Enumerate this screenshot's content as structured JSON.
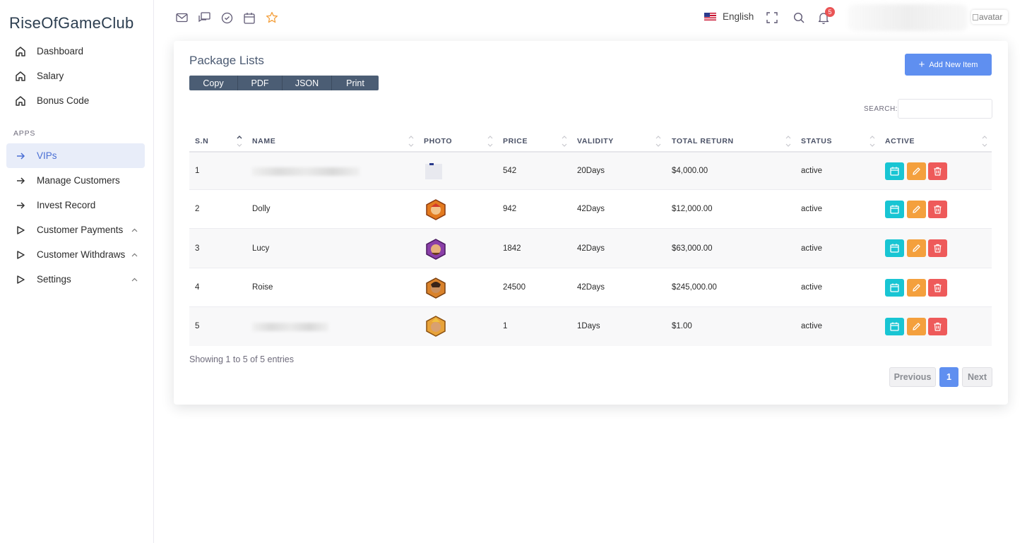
{
  "brand": "RiseOfGameClub",
  "sidebar": {
    "items": [
      {
        "label": "Dashboard",
        "icon": "home-icon"
      },
      {
        "label": "Salary",
        "icon": "home-icon"
      },
      {
        "label": "Bonus Code",
        "icon": "home-icon"
      }
    ],
    "section_label": "APPS",
    "apps": [
      {
        "label": "VIPs",
        "icon": "arrow-right-icon",
        "active": true
      },
      {
        "label": "Manage Customers",
        "icon": "arrow-right-icon"
      },
      {
        "label": "Invest Record",
        "icon": "arrow-right-icon"
      },
      {
        "label": "Customer Payments",
        "icon": "play-icon",
        "expandable": true
      },
      {
        "label": "Customer Withdraws",
        "icon": "play-icon",
        "expandable": true
      },
      {
        "label": "Settings",
        "icon": "play-icon",
        "expandable": true
      }
    ]
  },
  "topbar": {
    "icons": [
      "mail-icon",
      "chat-icon",
      "check-circle-icon",
      "calendar-icon",
      "star-icon"
    ],
    "language": "English",
    "notification_count": "5",
    "avatar_alt": "avatar"
  },
  "card": {
    "title": "Package Lists",
    "export_buttons": [
      "Copy",
      "PDF",
      "JSON",
      "Print"
    ],
    "add_button": "Add New Item",
    "search_label": "SEARCH:",
    "search_value": "",
    "columns": [
      "S.N",
      "NAME",
      "PHOTO",
      "PRICE",
      "VALIDITY",
      "TOTAL RETURN",
      "STATUS",
      "ACTIVE"
    ],
    "rows": [
      {
        "sn": "1",
        "name": "",
        "price": "542",
        "validity": "20Days",
        "total_return": "$4,000.00",
        "status": "active"
      },
      {
        "sn": "2",
        "name": "Dolly",
        "price": "942",
        "validity": "42Days",
        "total_return": "$12,000.00",
        "status": "active"
      },
      {
        "sn": "3",
        "name": "Lucy",
        "price": "1842",
        "validity": "42Days",
        "total_return": "$63,000.00",
        "status": "active"
      },
      {
        "sn": "4",
        "name": "Roise",
        "price": "24500",
        "validity": "42Days",
        "total_return": "$245,000.00",
        "status": "active"
      },
      {
        "sn": "5",
        "name": "",
        "price": "1",
        "validity": "1Days",
        "total_return": "$1.00",
        "status": "active"
      }
    ],
    "info": "Showing 1 to 5 of 5 entries",
    "pagination": {
      "prev": "Previous",
      "current": "1",
      "next": "Next"
    }
  },
  "colors": {
    "primary": "#5f8ff0",
    "view": "#18c5d3",
    "edit": "#f4a03d",
    "delete": "#ee5a5a"
  }
}
